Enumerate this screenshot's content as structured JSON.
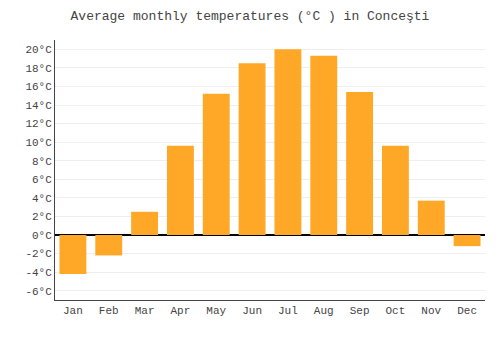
{
  "chart_data": {
    "type": "bar",
    "title": "Average monthly temperatures (°C ) in Conceşti",
    "categories": [
      "Jan",
      "Feb",
      "Mar",
      "Apr",
      "May",
      "Jun",
      "Jul",
      "Aug",
      "Sep",
      "Oct",
      "Nov",
      "Dec"
    ],
    "values": [
      -4.2,
      -2.2,
      2.5,
      9.6,
      15.2,
      18.5,
      20.0,
      19.3,
      15.4,
      9.6,
      3.7,
      -1.2
    ],
    "color": "#FFA726",
    "ylim": [
      -7,
      21
    ],
    "yticks": [
      {
        "value": -6,
        "label": "-6°C"
      },
      {
        "value": -4,
        "label": "-4°C"
      },
      {
        "value": -2,
        "label": "-2°C"
      },
      {
        "value": 0,
        "label": "0°C"
      },
      {
        "value": 2,
        "label": "2°C"
      },
      {
        "value": 4,
        "label": "4°C"
      },
      {
        "value": 6,
        "label": "6°C"
      },
      {
        "value": 8,
        "label": "8°C"
      },
      {
        "value": 10,
        "label": "10°C"
      },
      {
        "value": 12,
        "label": "12°C"
      },
      {
        "value": 14,
        "label": "14°C"
      },
      {
        "value": 16,
        "label": "16°C"
      },
      {
        "value": 18,
        "label": "18°C"
      },
      {
        "value": 20,
        "label": "20°C"
      }
    ],
    "grid": true
  }
}
